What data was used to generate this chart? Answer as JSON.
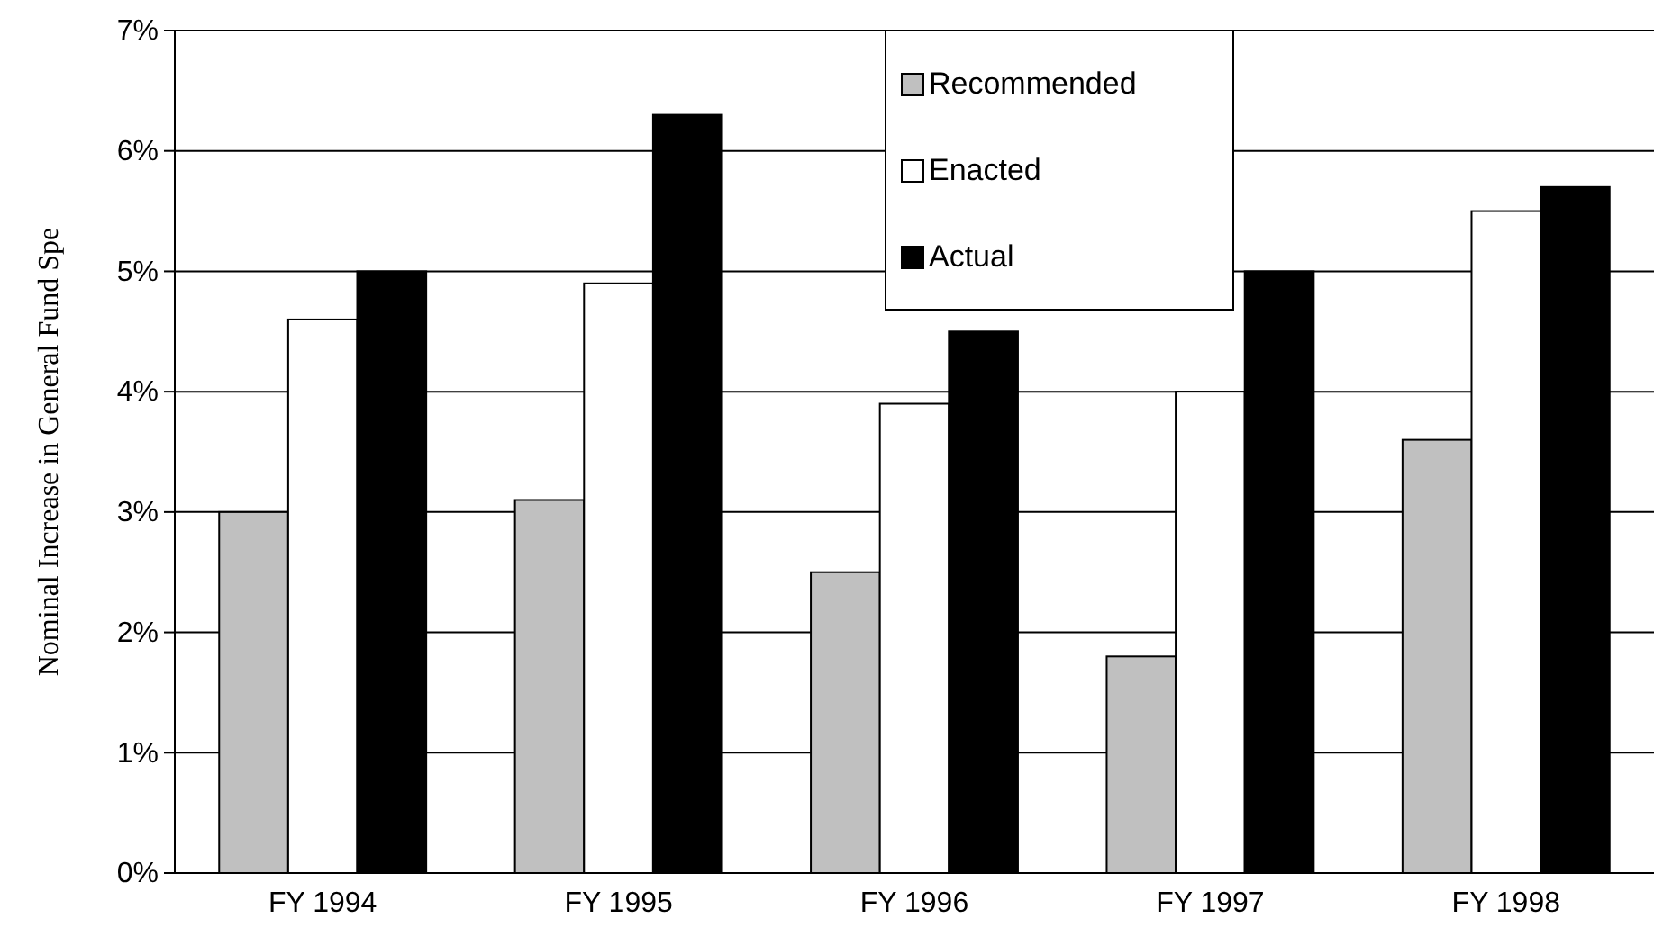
{
  "chart_data": {
    "type": "bar",
    "ylabel": "Nominal Increase in General Fund Spe",
    "categories": [
      "FY 1994",
      "FY 1995",
      "FY 1996",
      "FY 1997",
      "FY 1998"
    ],
    "series": [
      {
        "name": "Recommended",
        "color": "#c0c0c0",
        "values": [
          3.0,
          3.1,
          2.5,
          1.8,
          3.6
        ]
      },
      {
        "name": "Enacted",
        "color": "#ffffff",
        "values": [
          4.6,
          4.9,
          3.9,
          4.0,
          5.5
        ]
      },
      {
        "name": "Actual",
        "color": "#000000",
        "values": [
          5.0,
          6.3,
          4.5,
          5.0,
          5.7
        ]
      }
    ],
    "ylim": [
      0,
      7
    ],
    "yticks": [
      {
        "value": 0,
        "label": "0%"
      },
      {
        "value": 1,
        "label": "1%"
      },
      {
        "value": 2,
        "label": "2%"
      },
      {
        "value": 3,
        "label": "3%"
      },
      {
        "value": 4,
        "label": "4%"
      },
      {
        "value": 5,
        "label": "5%"
      },
      {
        "value": 6,
        "label": "6%"
      },
      {
        "value": 7,
        "label": "7%"
      }
    ],
    "grid": "y",
    "legend": "top"
  }
}
